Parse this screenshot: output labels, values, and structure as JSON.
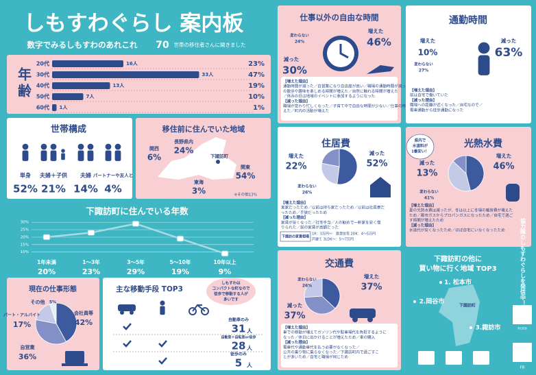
{
  "header": {
    "title": "しもすわぐらし 案内板",
    "subtitle": "数字でみるしもすわのあれこれ",
    "count": "70",
    "count_note": "世帯の移住者さんに聞きました"
  },
  "age": {
    "title": "年齢",
    "rows": [
      {
        "label": "20代",
        "count": 16,
        "count_label": "16人",
        "percent_label": "23%"
      },
      {
        "label": "30代",
        "count": 33,
        "count_label": "33人",
        "percent_label": "47%"
      },
      {
        "label": "40代",
        "count": 13,
        "count_label": "13人",
        "percent_label": "19%"
      },
      {
        "label": "50代",
        "count": 7,
        "count_label": "7人",
        "percent_label": "10%"
      },
      {
        "label": "60代",
        "count": 1,
        "count_label": "1人",
        "percent_label": "1%"
      }
    ]
  },
  "household": {
    "title": "世帯構成",
    "items": [
      {
        "label": "単身",
        "value": "52%"
      },
      {
        "label": "夫婦＋子供",
        "value": "21%"
      },
      {
        "label": "夫婦",
        "value": "14%"
      },
      {
        "label": "パートナーや友人と",
        "value": "4%"
      }
    ]
  },
  "origin": {
    "title": "移住前に住んでいた地域",
    "regions": [
      {
        "label": "関西",
        "value": "6%"
      },
      {
        "label": "長野県内",
        "value": "24%"
      },
      {
        "label": "関東",
        "value": "54%"
      },
      {
        "label": "東海",
        "value": "3%"
      }
    ],
    "town": "下諏訪町",
    "other": "※その他13%"
  },
  "years": {
    "title": "下諏訪町に住んでいる年数",
    "categories": [
      "1年未満",
      "1〜3年",
      "3〜5年",
      "5〜10年",
      "10年以上"
    ],
    "values": [
      20,
      23,
      29,
      19,
      9
    ],
    "value_labels": [
      "20%",
      "23%",
      "29%",
      "19%",
      "9%"
    ],
    "ylim": [
      8,
      31
    ],
    "yticks": [
      {
        "value": 30,
        "label": "30%"
      },
      {
        "value": 25,
        "label": "25%"
      },
      {
        "value": 20,
        "label": "20%"
      },
      {
        "value": 15,
        "label": "15%"
      },
      {
        "value": 10,
        "label": "10%"
      }
    ]
  },
  "work": {
    "title": "現在の仕事形態",
    "slices": [
      {
        "label": "会社員等",
        "value": 42,
        "value_label": "42%",
        "color": "#3d5a9e"
      },
      {
        "label": "自営業",
        "value": 36,
        "value_label": "36%",
        "color": "#8391c8"
      },
      {
        "label": "パート・アルバイト",
        "value": 17,
        "value_label": "17%",
        "color": "#c3c9e6"
      },
      {
        "label": "その他",
        "value": 5,
        "value_label": "5%",
        "color": "#e8eaf5"
      }
    ]
  },
  "transport": {
    "title": "主な移動手段 TOP3",
    "note_lines": [
      "しもすわは",
      "コンパクトな町なので",
      "徒歩で移動する人が",
      "多いです"
    ],
    "rows": [
      {
        "label": "自動車のみ",
        "value": "31",
        "unit": "人"
      },
      {
        "label": "自動車＋自転車or徒歩",
        "value": "28",
        "unit": "人"
      },
      {
        "label": "徒歩のみ",
        "value": "5",
        "unit": "人"
      }
    ]
  },
  "free_time": {
    "title": "仕事以外の自由な時間",
    "items": [
      {
        "label": "変わらない",
        "value": "24%"
      },
      {
        "label": "増えた",
        "value": "46%"
      },
      {
        "label": "減った",
        "value": "30%"
      }
    ],
    "reasons": [
      "【増えた理由】",
      "通勤時間が減った／自営業になり自由度が高い／職場の通勤時間が減った／朝",
      "の散歩や趣味を楽しめる時間が増えた／自然に触れる時間が増えた",
      "／休みの日は地域のイベントに参加するようになった",
      "【減った理由】",
      "職場が変わり忙しくなった／子育て中で自由な時間が少ない／仕事の時間が増",
      "えた／町内の活動が増えた"
    ]
  },
  "commute": {
    "title": "通勤時間",
    "items": [
      {
        "label": "増えた",
        "value": "10%"
      },
      {
        "label": "減った",
        "value": "63%"
      },
      {
        "label": "変わらない",
        "value": "27%"
      }
    ],
    "reasons": [
      "【増えた理由】",
      "前は自宅で働いていた",
      "【減った理由】",
      "職場への距離が近くなった／自宅なので／",
      "電車通勤から徒歩通勤になった"
    ]
  },
  "housing": {
    "title": "住居費",
    "slices": [
      {
        "label": "減った",
        "value": 52,
        "value_label": "52%",
        "color": "#3d5a9e"
      },
      {
        "label": "変わらない",
        "value": 26,
        "value_label": "26%",
        "color": "#c3c9e6"
      },
      {
        "label": "増えた",
        "value": 22,
        "value_label": "22%",
        "color": "#8391c8"
      }
    ],
    "reasons": [
      "【増えた理由】",
      "実家だったため／以前は持ち家だったため／以前は社員寮だ",
      "ったため／手狭だったため",
      "【減った理由】",
      "家賃が安くなった／社宅手当／人の勧めで一軒家を安く借",
      "りられた／前の家賃が高額だった"
    ],
    "rent": [
      "下諏訪の家賃相場",
      "1R：3万円〜　賃貸住宅 2DK：4〜5万円",
      "戸建て 3LDK〜：5〜7万円"
    ]
  },
  "utilities": {
    "title": "光熱水費",
    "bubble": [
      "県内で",
      "水道料が",
      "1番安い！"
    ],
    "slices": [
      {
        "label": "増えた",
        "value": 46,
        "value_label": "46%",
        "color": "#3d5a9e"
      },
      {
        "label": "変わらない",
        "value": 41,
        "value_label": "41%",
        "color": "#c3c9e6"
      },
      {
        "label": "減った",
        "value": 13,
        "value_label": "13%",
        "color": "#8391c8"
      }
    ],
    "reasons": [
      "【増えた理由】",
      "夏の光熱水費は減ったが、冬は以上に冬場の暖房費が増えた",
      "ため／都市ガスからプロパンガスになったため／自宅で過ご",
      "す時間が増えたため",
      "【減った理由】",
      "水道代が安くなったため／ほぼ自宅にいなくなったため"
    ]
  },
  "transport_cost": {
    "title": "交通費",
    "slices": [
      {
        "label": "増えた",
        "value": 37,
        "value_label": "37%",
        "color": "#3d5a9e"
      },
      {
        "label": "減った",
        "value": 37,
        "value_label": "37%",
        "color": "#8391c8"
      },
      {
        "label": "変わらない",
        "value": 26,
        "value_label": "26%",
        "color": "#c3c9e6"
      }
    ],
    "reasons": [
      "【増えた理由】",
      "車での移動が増えてガソリン代や駐車場代を負担するように",
      "なった／休日に出かけることが増えたため／車の購入",
      "【減った理由】",
      "電車代や通勤車代を払う必要がなくなった／",
      "公共の乗り物に乗らなくなった／下諏訪町内で過ごすこ",
      "とが多いため／自宅と職場が同じため"
    ]
  },
  "shopping": {
    "title_lines": [
      "下諏訪町の他に",
      "買い物に行く地域 TOP3"
    ],
    "places": [
      "1. 松本市",
      "2.岡谷市",
      "3.諏訪市"
    ],
    "town": "下諏訪町"
  },
  "side": {
    "message": "協力隊のしもすわぐらしを発信中！",
    "insta": "Insta",
    "fb": "FB"
  }
}
